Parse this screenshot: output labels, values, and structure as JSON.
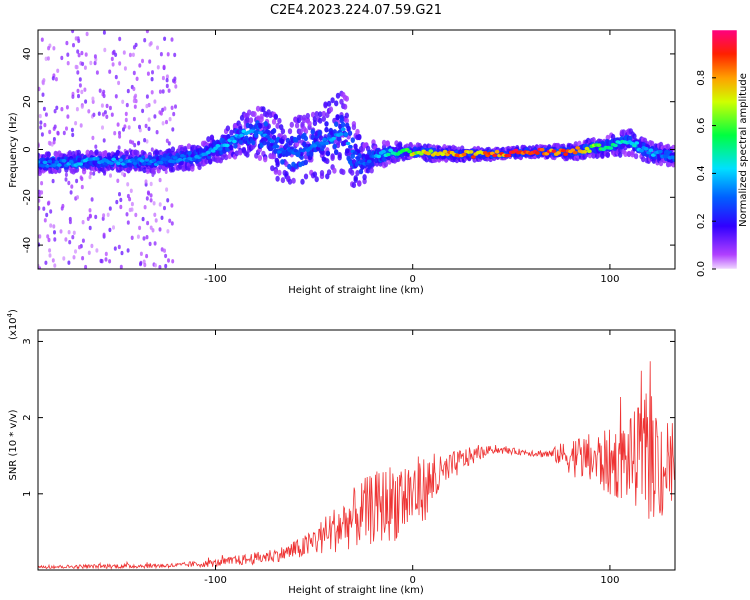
{
  "title": "C2E4.2023.224.07.59.G21",
  "chart_data": [
    {
      "type": "heatmap",
      "xlabel": "Height of straight line (km)",
      "ylabel": "Frequency (Hz)",
      "xlim": [
        -190,
        133
      ],
      "ylim": [
        -50,
        50
      ],
      "xticks": [
        -100,
        0,
        100
      ],
      "xtick_labels": [
        "-100",
        "0",
        "100"
      ],
      "yticks": [
        40,
        20,
        0,
        -20,
        -40
      ],
      "ytick_labels": [
        "40",
        "20",
        "0",
        "-20",
        "-40"
      ],
      "colorbar": {
        "label": "Normalized spectral amplitude",
        "range": [
          0,
          1
        ],
        "ticks": [
          0.0,
          0.2,
          0.4,
          0.6,
          0.8
        ],
        "tick_labels": [
          "0.0",
          "0.2",
          "0.4",
          "0.6",
          "0.8"
        ],
        "colormap": [
          "#f0d8ff",
          "#a000ff",
          "#0000ff",
          "#00e0ff",
          "#00ff00",
          "#ffff00",
          "#ff8000",
          "#ff0000",
          "#ff0080"
        ]
      },
      "ridge": {
        "x": [
          -190,
          -160,
          -130,
          -110,
          -95,
          -85,
          -75,
          -65,
          -55,
          -45,
          -35,
          -30,
          -25,
          -20,
          -10,
          0,
          20,
          40,
          60,
          80,
          95,
          110,
          120,
          133
        ],
        "freq": [
          -6,
          -5,
          -5,
          -3,
          2,
          7,
          6,
          -2,
          0,
          3,
          8,
          -2,
          -6,
          -3,
          -1,
          -1,
          -2,
          -2,
          -1,
          -1,
          1,
          3,
          -1,
          -3
        ],
        "spread": [
          4,
          4,
          4,
          5,
          6,
          9,
          12,
          14,
          14,
          16,
          18,
          14,
          8,
          6,
          4,
          3,
          3,
          2,
          2,
          3,
          4,
          5,
          4,
          4
        ],
        "amplitude": [
          0.35,
          0.4,
          0.35,
          0.35,
          0.4,
          0.4,
          0.35,
          0.3,
          0.3,
          0.35,
          0.4,
          0.3,
          0.3,
          0.35,
          0.55,
          0.7,
          0.8,
          0.85,
          0.9,
          0.85,
          0.6,
          0.45,
          0.4,
          0.35
        ]
      },
      "scatter_region": {
        "x": [
          -190,
          -120
        ],
        "freq": [
          -50,
          50
        ]
      }
    },
    {
      "type": "line",
      "series": [
        {
          "color": "#ee3333",
          "x_range": [
            -190,
            133
          ],
          "envelope_x": [
            -190,
            -150,
            -120,
            -100,
            -80,
            -65,
            -55,
            -45,
            -35,
            -25,
            -15,
            -5,
            5,
            15,
            25,
            40,
            55,
            70,
            80,
            90,
            100,
            110,
            120,
            128,
            133
          ],
          "envelope_mean": [
            0.04,
            0.05,
            0.06,
            0.09,
            0.15,
            0.22,
            0.3,
            0.45,
            0.6,
            0.75,
            0.85,
            0.95,
            1.05,
            1.25,
            1.45,
            1.58,
            1.55,
            1.52,
            1.5,
            1.45,
            1.4,
            1.45,
            1.5,
            1.35,
            1.4
          ],
          "envelope_amp": [
            0.02,
            0.03,
            0.03,
            0.05,
            0.08,
            0.1,
            0.15,
            0.25,
            0.35,
            0.45,
            0.5,
            0.55,
            0.45,
            0.25,
            0.15,
            0.05,
            0.04,
            0.06,
            0.25,
            0.35,
            0.45,
            0.55,
            0.85,
            0.75,
            0.6
          ]
        }
      ],
      "xlabel": "Height of straight line (km)",
      "ylabel": "SNR (10 * v/v)",
      "y_multiplier": "(x10",
      "y_multiplier_exp": "4",
      "y_multiplier_close": ")",
      "xlim": [
        -190,
        133
      ],
      "ylim": [
        0,
        3.15
      ],
      "xticks": [
        -100,
        0,
        100
      ],
      "xtick_labels": [
        "-100",
        "0",
        "100"
      ],
      "yticks": [
        3,
        2,
        1
      ],
      "ytick_labels": [
        "3",
        "2",
        "1"
      ]
    }
  ]
}
